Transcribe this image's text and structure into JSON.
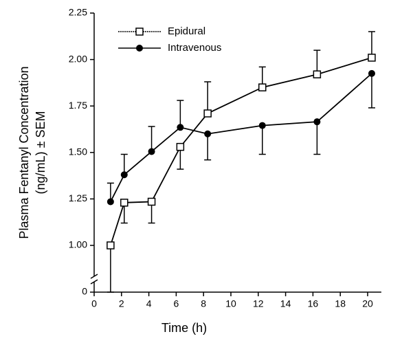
{
  "chart_data": {
    "type": "line",
    "ylabel": [
      "Plasma Fentanyl Concentration",
      "(ng/mL) ± SEM"
    ],
    "xlabel": "Time (h)",
    "x": [
      1.2,
      2.2,
      4.2,
      6.3,
      8.3,
      12.3,
      16.3,
      20.3
    ],
    "series": [
      {
        "name": "Epidural",
        "color": "#000000",
        "marker": "open-square",
        "values": [
          1.0,
          1.23,
          1.235,
          1.53,
          1.71,
          1.85,
          1.92,
          2.01
        ],
        "errors": [
          0.09,
          0.11,
          0.115,
          0.12,
          0.17,
          0.11,
          0.13,
          0.14
        ],
        "error_side": [
          "down",
          "down",
          "down",
          "down",
          "up",
          "up",
          "up",
          "up"
        ]
      },
      {
        "name": "Intravenous",
        "color": "#000000",
        "marker": "filled-circle",
        "values": [
          1.235,
          1.38,
          1.505,
          1.635,
          1.6,
          1.645,
          1.665,
          1.925
        ],
        "errors": [
          0.1,
          0.11,
          0.135,
          0.145,
          0.14,
          0.155,
          0.175,
          0.185
        ],
        "error_side": [
          "up",
          "up",
          "up",
          "up",
          "down",
          "down",
          "down",
          "down"
        ]
      }
    ],
    "xlim": [
      0,
      21
    ],
    "xticks": [
      0,
      2,
      4,
      6,
      8,
      10,
      12,
      14,
      16,
      18,
      20
    ],
    "ylim": [
      0,
      2.25
    ],
    "y_break": [
      0,
      1
    ],
    "yticks": [
      0,
      {
        "value": 1,
        "label": "1.00"
      },
      1.25,
      {
        "value": 1.5,
        "label": "1.50"
      },
      1.75,
      {
        "value": 2,
        "label": "2.00"
      },
      2.25
    ],
    "legend": "top-left"
  }
}
